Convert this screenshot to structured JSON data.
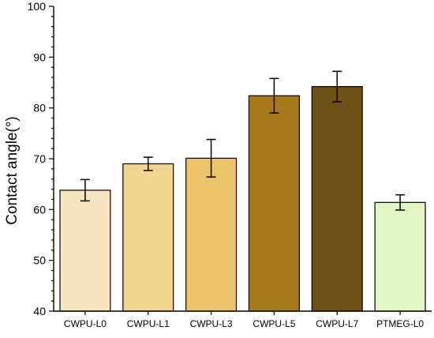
{
  "chart_data": {
    "type": "bar",
    "ylabel": "Contact angle(°)",
    "xlabel": "",
    "ylim": [
      40,
      100
    ],
    "yticks": [
      40,
      50,
      60,
      70,
      80,
      90,
      100
    ],
    "y_minor_step": 2,
    "categories": [
      "CWPU-L0",
      "CWPU-L1",
      "CWPU-L3",
      "CWPU-L5",
      "CWPU-L7",
      "PTMEG-L0"
    ],
    "values": [
      63.8,
      69.0,
      70.1,
      82.4,
      84.2,
      61.4
    ],
    "errors": [
      2.1,
      1.3,
      3.7,
      3.4,
      3.0,
      1.5
    ],
    "colors": [
      "#F7E4C0",
      "#F3D592",
      "#ECC56B",
      "#A87A1E",
      "#6E5116",
      "#E2F5C4"
    ],
    "edge_color": "#000000",
    "grid": false,
    "legend": false
  }
}
